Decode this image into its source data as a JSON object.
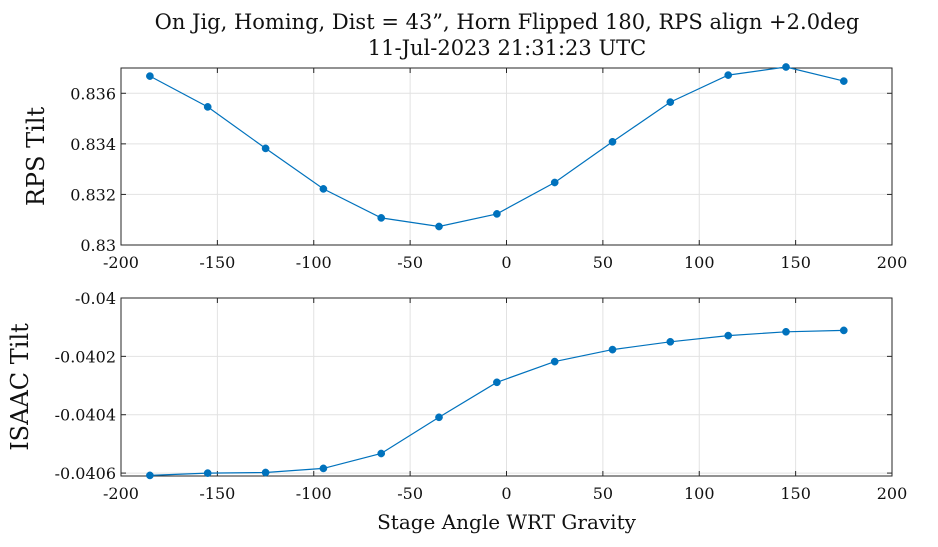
{
  "figure": {
    "title_line1": "On Jig, Homing, Dist = 43”, Horn Flipped 180, RPS align +2.0deg",
    "title_line2": "11-Jul-2023 21:31:23 UTC"
  },
  "chart_data": [
    {
      "type": "line",
      "title": "On Jig, Homing, Dist = 43”, Horn Flipped 180, RPS align +2.0deg / 11-Jul-2023 21:31:23 UTC",
      "xlabel": "",
      "ylabel": "RPS Tilt",
      "xlim": [
        -200,
        200
      ],
      "ylim": [
        0.83,
        0.837
      ],
      "xticks": [
        -200,
        -150,
        -100,
        -50,
        0,
        50,
        100,
        150,
        200
      ],
      "yticks": [
        0.83,
        0.832,
        0.834,
        0.836
      ],
      "xtick_labels": [
        "-200",
        "-150",
        "-100",
        "-50",
        "0",
        "50",
        "100",
        "150",
        "200"
      ],
      "ytick_labels": [
        "0.83",
        "0.832",
        "0.834",
        "0.836"
      ],
      "grid": true,
      "series": [
        {
          "color": "#0072BD",
          "x": [
            -185,
            -155,
            -125,
            -95,
            -65,
            -35,
            -5,
            25,
            55,
            85,
            115,
            145,
            175
          ],
          "y": [
            0.83668,
            0.83546,
            0.83382,
            0.83222,
            0.83107,
            0.83073,
            0.83123,
            0.83247,
            0.83408,
            0.83565,
            0.83672,
            0.83704,
            0.83648
          ]
        }
      ]
    },
    {
      "type": "line",
      "xlabel": "Stage Angle WRT Gravity",
      "ylabel": "ISAAC Tilt",
      "xlim": [
        -200,
        200
      ],
      "ylim": [
        -0.04061,
        -0.04
      ],
      "xticks": [
        -200,
        -150,
        -100,
        -50,
        0,
        50,
        100,
        150,
        200
      ],
      "yticks": [
        -0.0406,
        -0.0404,
        -0.0402,
        -0.04
      ],
      "xtick_labels": [
        "-200",
        "-150",
        "-100",
        "-50",
        "0",
        "50",
        "100",
        "150",
        "200"
      ],
      "ytick_labels": [
        "-0.0406",
        "-0.0404",
        "-0.0402",
        "-0.04"
      ],
      "grid": true,
      "series": [
        {
          "color": "#0072BD",
          "x": [
            -185,
            -155,
            -125,
            -95,
            -65,
            -35,
            -5,
            25,
            55,
            85,
            115,
            145,
            175
          ],
          "y": [
            -0.040608,
            -0.0406,
            -0.040598,
            -0.040584,
            -0.040533,
            -0.040409,
            -0.040289,
            -0.040218,
            -0.040177,
            -0.04015,
            -0.040129,
            -0.040116,
            -0.040111
          ]
        }
      ]
    }
  ]
}
